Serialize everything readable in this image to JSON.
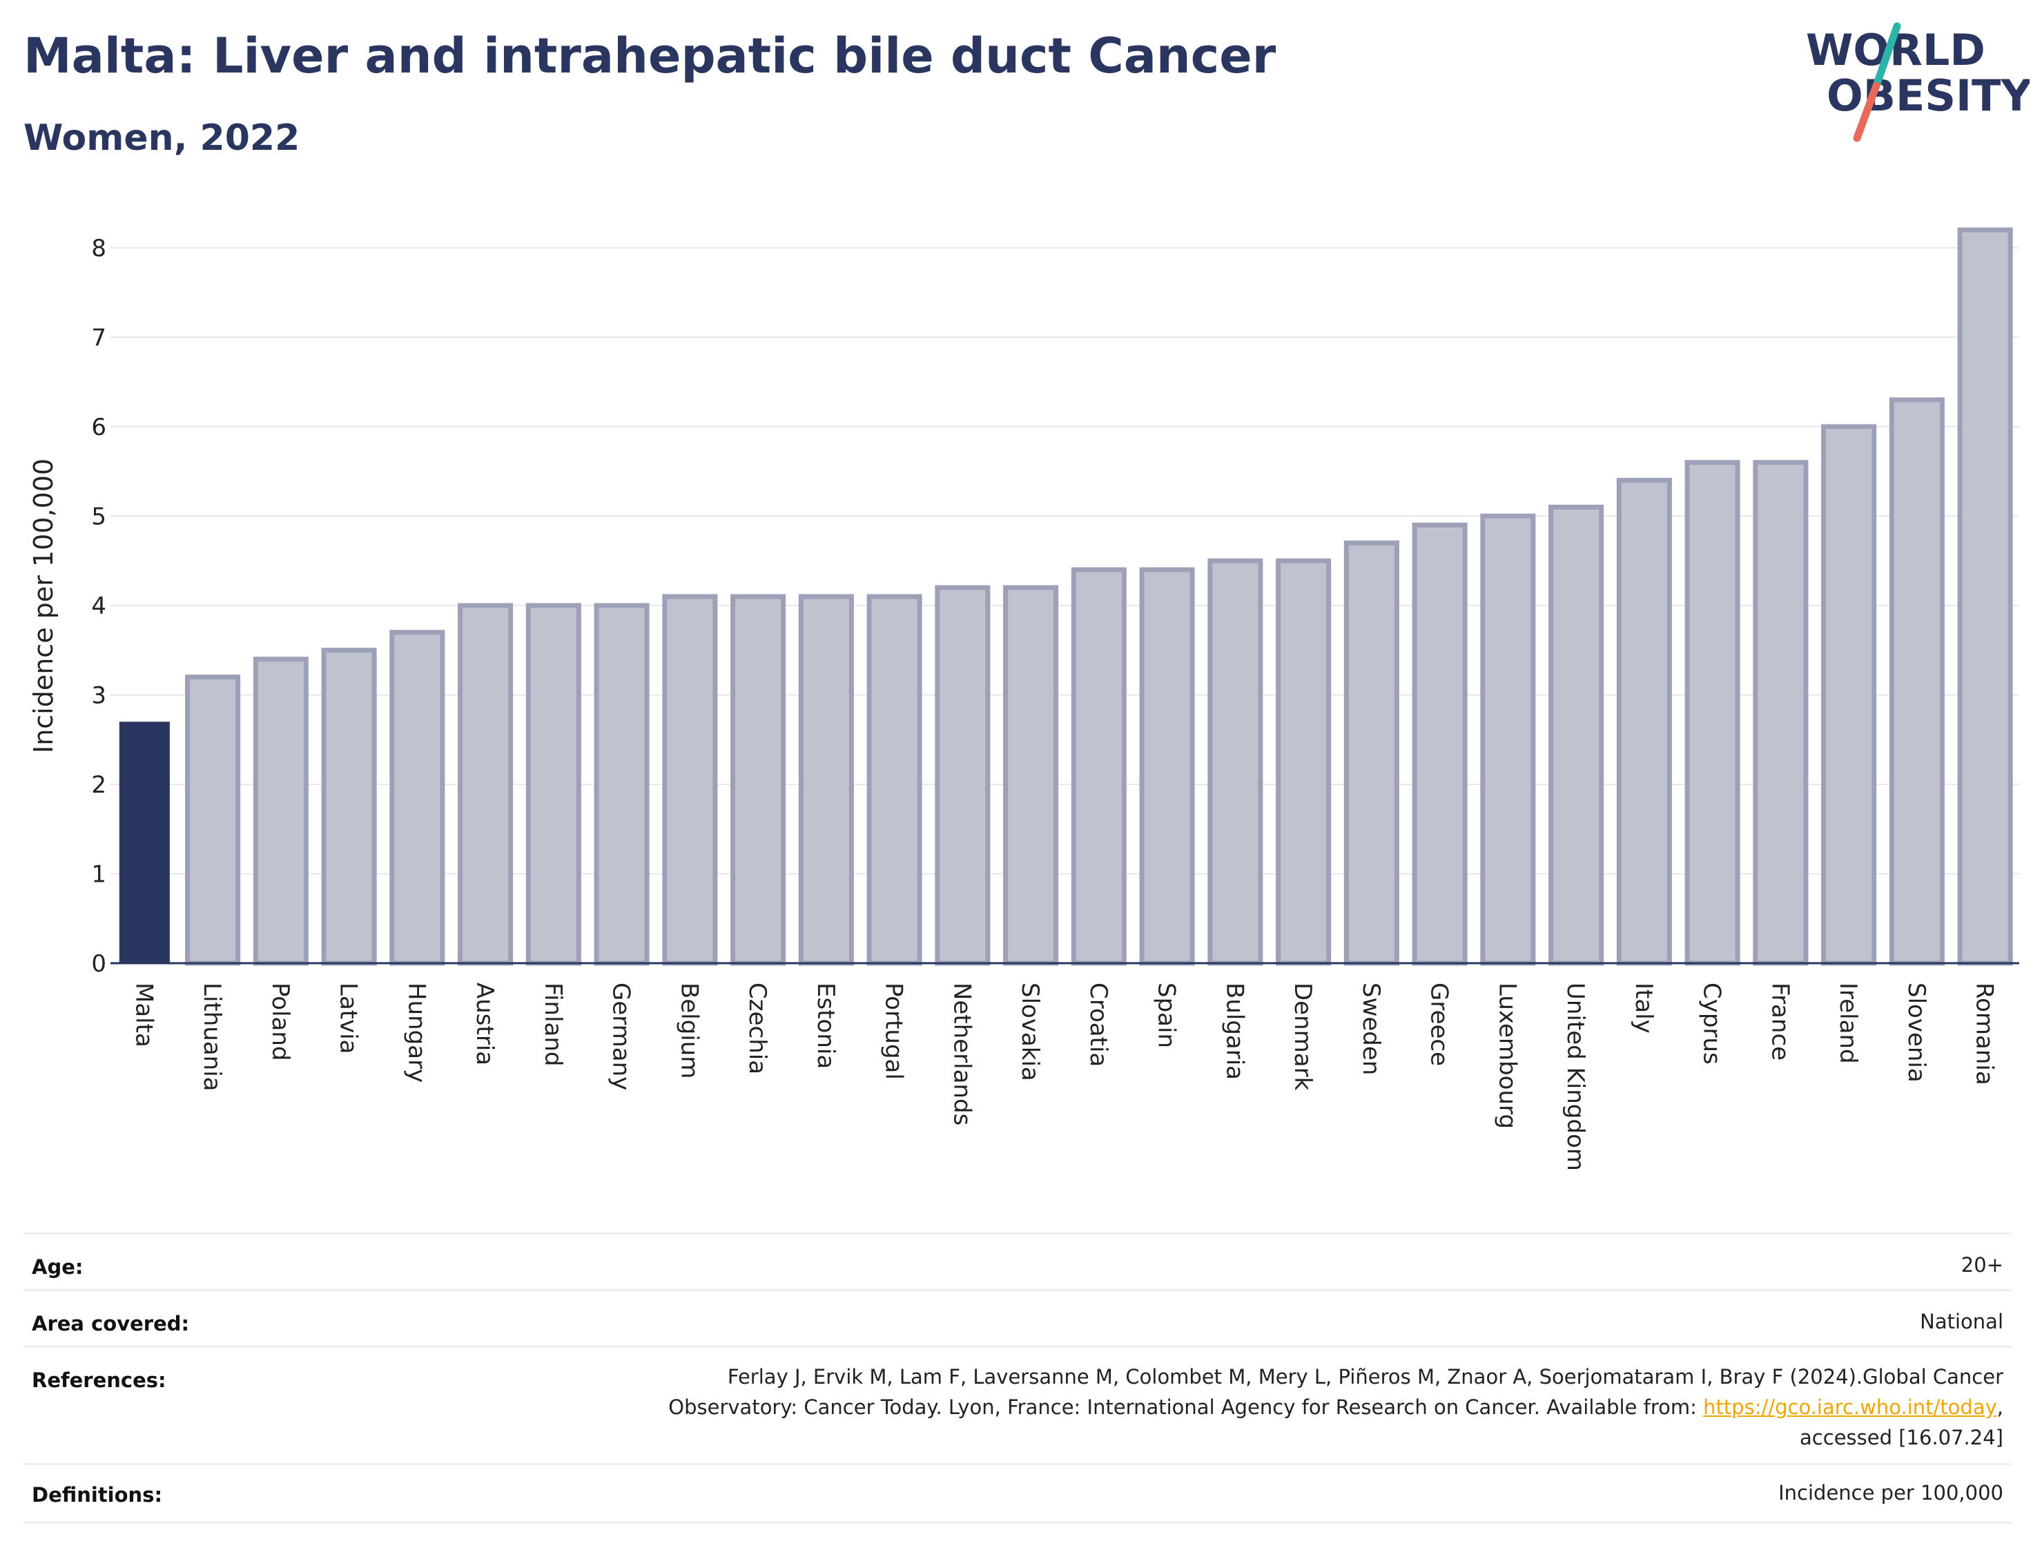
{
  "header": {
    "title": "Malta: Liver and intrahepatic bile duct Cancer",
    "subtitle": "Women, 2022"
  },
  "logo": {
    "line1": "WORLD",
    "line2": "OBESITY",
    "accent_teal": "#2bb5a8",
    "accent_coral": "#e8695a"
  },
  "colors": {
    "highlight_bar": "#2b3660",
    "other_bar_fill": "#bfc2cf",
    "other_bar_stroke": "#9da1b7",
    "axis": "#2b3660"
  },
  "chart_data": {
    "type": "bar",
    "title": "Malta: Liver and intrahepatic bile duct Cancer",
    "subtitle": "Women, 2022",
    "ylabel": "Incidence per 100,000",
    "xlabel": "",
    "ylim": [
      0,
      8.3
    ],
    "yticks": [
      0,
      1,
      2,
      3,
      4,
      5,
      6,
      7,
      8
    ],
    "grid": true,
    "highlight": "Malta",
    "categories": [
      "Malta",
      "Lithuania",
      "Poland",
      "Latvia",
      "Hungary",
      "Austria",
      "Finland",
      "Germany",
      "Belgium",
      "Czechia",
      "Estonia",
      "Portugal",
      "Netherlands",
      "Slovakia",
      "Croatia",
      "Spain",
      "Bulgaria",
      "Denmark",
      "Sweden",
      "Greece",
      "Luxembourg",
      "United Kingdom",
      "Italy",
      "Cyprus",
      "France",
      "Ireland",
      "Slovenia",
      "Romania"
    ],
    "values": [
      2.7,
      3.2,
      3.4,
      3.5,
      3.7,
      4.0,
      4.0,
      4.0,
      4.1,
      4.1,
      4.1,
      4.1,
      4.2,
      4.2,
      4.4,
      4.4,
      4.5,
      4.5,
      4.7,
      4.9,
      5.0,
      5.1,
      5.4,
      5.6,
      5.6,
      6.0,
      6.3,
      8.2
    ]
  },
  "info": {
    "age_label": "Age:",
    "age_value": "20+",
    "area_label": "Area covered:",
    "area_value": "National",
    "references_label": "References:",
    "references_line1": "Ferlay J, Ervik M, Lam F, Laversanne M, Colombet M, Mery L, Piñeros M, Znaor A, Soerjomataram I, Bray F (2024).Global Cancer",
    "references_line2_pre": "Observatory: Cancer Today. Lyon, France: International Agency for Research on Cancer. Available from: ",
    "references_link": "https://gco.iarc.who.int/today",
    "references_line2_post": ",",
    "references_line3": "accessed [16.07.24]",
    "definitions_label": "Definitions:",
    "definitions_value": "Incidence per 100,000"
  }
}
